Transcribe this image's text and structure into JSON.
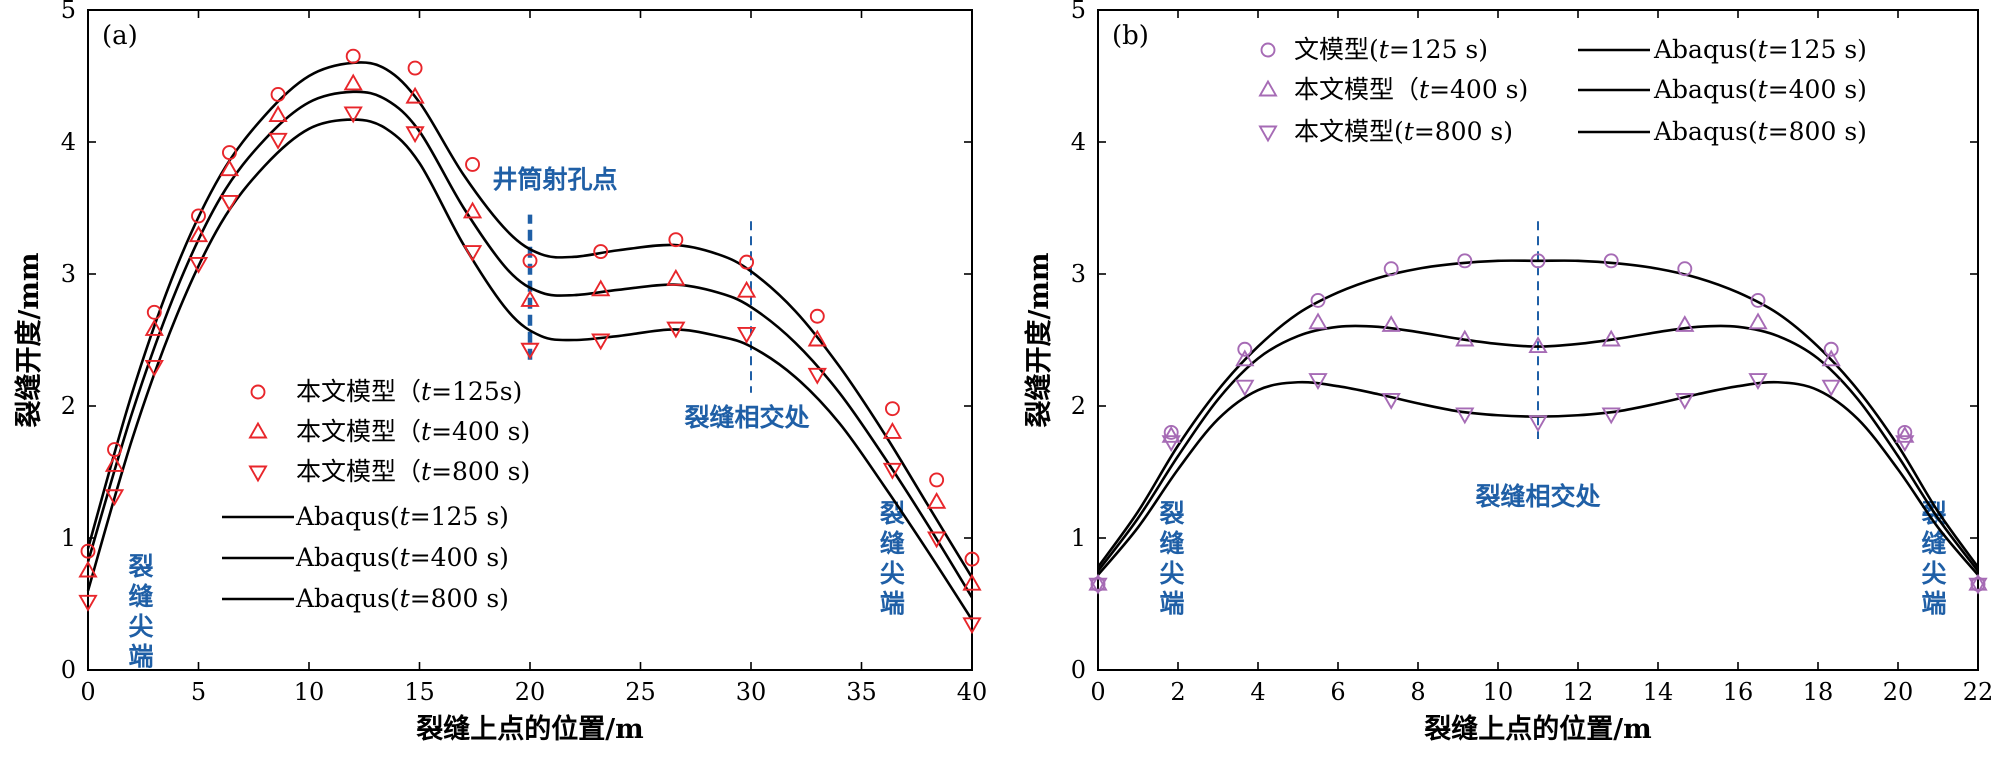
{
  "chart_data": [
    {
      "type": "scatter",
      "panel_label": "(a)",
      "xlabel": "裂缝上点的位置/m",
      "ylabel": "裂缝开度/mm",
      "xlim": [
        0,
        40
      ],
      "ylim": [
        0,
        5
      ],
      "xticks": [
        0,
        5,
        10,
        15,
        20,
        25,
        30,
        35,
        40
      ],
      "yticks": [
        0,
        1,
        2,
        3,
        4,
        5
      ],
      "legend_position": "lower-left",
      "marker_color": "#e8262b",
      "series": [
        {
          "name": "本文模型（t=125s)",
          "name_prefix": "本文模型（",
          "name_t": "t",
          "name_suffix": "=125s)",
          "marker": "circle",
          "x": [
            0,
            1.2,
            3,
            5,
            6.4,
            8.6,
            12,
            14.8,
            17.4,
            20,
            23.2,
            26.6,
            29.8,
            33,
            36.4,
            38.4,
            40
          ],
          "y": [
            0.9,
            1.67,
            2.71,
            3.44,
            3.92,
            4.36,
            4.65,
            4.56,
            3.83,
            3.1,
            3.17,
            3.26,
            3.09,
            2.68,
            1.98,
            1.44,
            0.84
          ]
        },
        {
          "name": "本文模型（t=400 s)",
          "name_prefix": "本文模型（",
          "name_t": "t",
          "name_suffix": "=400 s)",
          "marker": "triangle-up",
          "x": [
            0,
            1.2,
            3,
            5,
            6.4,
            8.6,
            12,
            14.8,
            17.4,
            20,
            23.2,
            26.6,
            29.8,
            33,
            36.4,
            38.4,
            40
          ],
          "y": [
            0.75,
            1.55,
            2.58,
            3.29,
            3.79,
            4.2,
            4.44,
            4.34,
            3.47,
            2.8,
            2.88,
            2.96,
            2.87,
            2.5,
            1.8,
            1.27,
            0.65
          ]
        },
        {
          "name": "本文模型（t=800 s)",
          "name_prefix": "本文模型（",
          "name_t": "t",
          "name_suffix": "=800 s)",
          "marker": "triangle-down",
          "x": [
            0,
            1.2,
            3,
            5,
            6.4,
            8.6,
            12,
            14.8,
            17.4,
            20,
            23.2,
            26.6,
            29.8,
            33,
            36.4,
            38.4,
            40
          ],
          "y": [
            0.52,
            1.32,
            2.3,
            3.08,
            3.55,
            4.02,
            4.22,
            4.07,
            3.17,
            2.43,
            2.5,
            2.59,
            2.55,
            2.24,
            1.52,
            1.0,
            0.35
          ]
        }
      ],
      "fit_lines": [
        {
          "name": "Abaqus(t=125 s)",
          "name_prefix": "Abaqus(",
          "name_t": "t",
          "name_suffix": "=125 s)",
          "x": [
            0,
            2,
            4,
            6,
            8,
            10,
            12,
            13.5,
            15,
            17,
            19,
            20.5,
            22,
            24,
            26.5,
            28.5,
            30,
            32,
            34,
            36,
            38,
            40
          ],
          "y": [
            0.92,
            2.1,
            3.05,
            3.75,
            4.2,
            4.5,
            4.6,
            4.55,
            4.3,
            3.75,
            3.32,
            3.15,
            3.13,
            3.18,
            3.22,
            3.15,
            3.02,
            2.72,
            2.3,
            1.8,
            1.25,
            0.7
          ]
        },
        {
          "name": "Abaqus(t=400 s)",
          "name_prefix": "Abaqus(",
          "name_t": "t",
          "name_suffix": "=400 s)",
          "x": [
            0,
            2,
            4,
            6,
            8,
            10,
            12,
            13.5,
            15,
            17,
            19,
            20.5,
            22,
            24,
            26.5,
            28.5,
            30,
            32,
            34,
            36,
            38,
            40
          ],
          "y": [
            0.82,
            1.95,
            2.88,
            3.58,
            4.02,
            4.3,
            4.38,
            4.32,
            4.08,
            3.5,
            3.03,
            2.86,
            2.84,
            2.88,
            2.92,
            2.86,
            2.75,
            2.48,
            2.1,
            1.62,
            1.1,
            0.55
          ]
        },
        {
          "name": "Abaqus(t=800 s)",
          "name_prefix": "Abaqus(",
          "name_t": "t",
          "name_suffix": "=800 s)",
          "x": [
            0,
            2,
            4,
            6,
            8,
            10,
            12,
            13.5,
            15,
            17,
            19,
            20.5,
            22,
            24,
            26.5,
            28.5,
            30,
            32,
            34,
            36,
            38,
            40
          ],
          "y": [
            0.6,
            1.75,
            2.68,
            3.38,
            3.82,
            4.1,
            4.17,
            4.1,
            3.84,
            3.22,
            2.72,
            2.53,
            2.5,
            2.53,
            2.58,
            2.53,
            2.45,
            2.22,
            1.87,
            1.4,
            0.9,
            0.38
          ]
        }
      ],
      "annotations": {
        "wellbore_label": "井筒射孔点",
        "wellbore_x": 20,
        "intersection_label": "裂缝相交处",
        "intersection_x": 30,
        "tip_left": "裂缝尖端",
        "tip_right": "裂缝尖端"
      }
    },
    {
      "type": "scatter",
      "panel_label": "(b)",
      "xlabel": "裂缝上点的位置/m",
      "ylabel": "裂缝开度/mm",
      "xlim": [
        0,
        22
      ],
      "ylim": [
        0,
        5
      ],
      "xticks": [
        0,
        2,
        4,
        6,
        8,
        10,
        12,
        14,
        16,
        18,
        20,
        22
      ],
      "yticks": [
        0,
        1,
        2,
        3,
        4,
        5
      ],
      "legend_position": "top",
      "marker_color": "#a66bb5",
      "series": [
        {
          "name": "文模型(t=125 s)",
          "name_prefix": "文模型(",
          "name_t": "t",
          "name_suffix": "=125 s)",
          "marker": "circle",
          "x": [
            0,
            1.83,
            3.67,
            5.5,
            7.33,
            9.17,
            11,
            12.83,
            14.67,
            16.5,
            18.33,
            20.17,
            22
          ],
          "y": [
            0.65,
            1.8,
            2.43,
            2.8,
            3.04,
            3.1,
            3.1,
            3.1,
            3.04,
            2.8,
            2.43,
            1.8,
            0.65
          ]
        },
        {
          "name": "本文模型（t=400 s)",
          "name_prefix": "本文模型（",
          "name_t": "t",
          "name_suffix": "=400 s)",
          "marker": "triangle-up",
          "x": [
            0,
            1.83,
            3.67,
            5.5,
            7.33,
            9.17,
            11,
            12.83,
            14.67,
            16.5,
            18.33,
            20.17,
            22
          ],
          "y": [
            0.65,
            1.77,
            2.35,
            2.63,
            2.61,
            2.5,
            2.45,
            2.5,
            2.61,
            2.63,
            2.35,
            1.77,
            0.65
          ]
        },
        {
          "name": "本文模型(t=800 s)",
          "name_prefix": "本文模型(",
          "name_t": "t",
          "name_suffix": "=800 s)",
          "marker": "triangle-down",
          "x": [
            0,
            1.83,
            3.67,
            5.5,
            7.33,
            9.17,
            11,
            12.83,
            14.67,
            16.5,
            18.33,
            20.17,
            22
          ],
          "y": [
            0.65,
            1.73,
            2.15,
            2.2,
            2.05,
            1.94,
            1.88,
            1.94,
            2.05,
            2.2,
            2.15,
            1.73,
            0.65
          ]
        }
      ],
      "fit_lines": [
        {
          "name": "Abaqus(t=125 s)",
          "name_prefix": "Abaqus(",
          "name_t": "t",
          "name_suffix": "=125 s)",
          "x": [
            0,
            1,
            2,
            3,
            4,
            5,
            6,
            7,
            8,
            9,
            10,
            11,
            12,
            13,
            14,
            15,
            16,
            17,
            18,
            19,
            20,
            21,
            22
          ],
          "y": [
            0.78,
            1.2,
            1.7,
            2.12,
            2.45,
            2.7,
            2.86,
            2.97,
            3.04,
            3.08,
            3.1,
            3.1,
            3.1,
            3.08,
            3.04,
            2.97,
            2.86,
            2.7,
            2.45,
            2.12,
            1.7,
            1.2,
            0.78
          ]
        },
        {
          "name": "Abaqus(t=400 s)",
          "name_prefix": "Abaqus(",
          "name_t": "t",
          "name_suffix": "=400 s)",
          "x": [
            0,
            1,
            2,
            3,
            4,
            5,
            6,
            7,
            8,
            9,
            10,
            11,
            12,
            13,
            14,
            15,
            16,
            17,
            18,
            19,
            20,
            21,
            22
          ],
          "y": [
            0.75,
            1.15,
            1.62,
            2.05,
            2.36,
            2.53,
            2.6,
            2.6,
            2.56,
            2.51,
            2.47,
            2.45,
            2.47,
            2.51,
            2.56,
            2.6,
            2.6,
            2.53,
            2.36,
            2.05,
            1.62,
            1.15,
            0.75
          ]
        },
        {
          "name": "Abaqus(t=800 s)",
          "name_prefix": "Abaqus(",
          "name_t": "t",
          "name_suffix": "=800 s)",
          "x": [
            0,
            1,
            2,
            3,
            4,
            5,
            6,
            7,
            8,
            9,
            10,
            11,
            12,
            13,
            14,
            15,
            16,
            17,
            18,
            19,
            20,
            21,
            22
          ],
          "y": [
            0.72,
            1.08,
            1.52,
            1.9,
            2.12,
            2.18,
            2.15,
            2.09,
            2.02,
            1.96,
            1.93,
            1.92,
            1.93,
            1.96,
            2.02,
            2.09,
            2.15,
            2.18,
            2.12,
            1.9,
            1.52,
            1.08,
            0.72
          ]
        }
      ],
      "annotations": {
        "center_x": 11,
        "intersection_label": "裂缝相交处",
        "tip_left": "裂缝尖端",
        "tip_right": "裂缝尖端"
      }
    }
  ]
}
